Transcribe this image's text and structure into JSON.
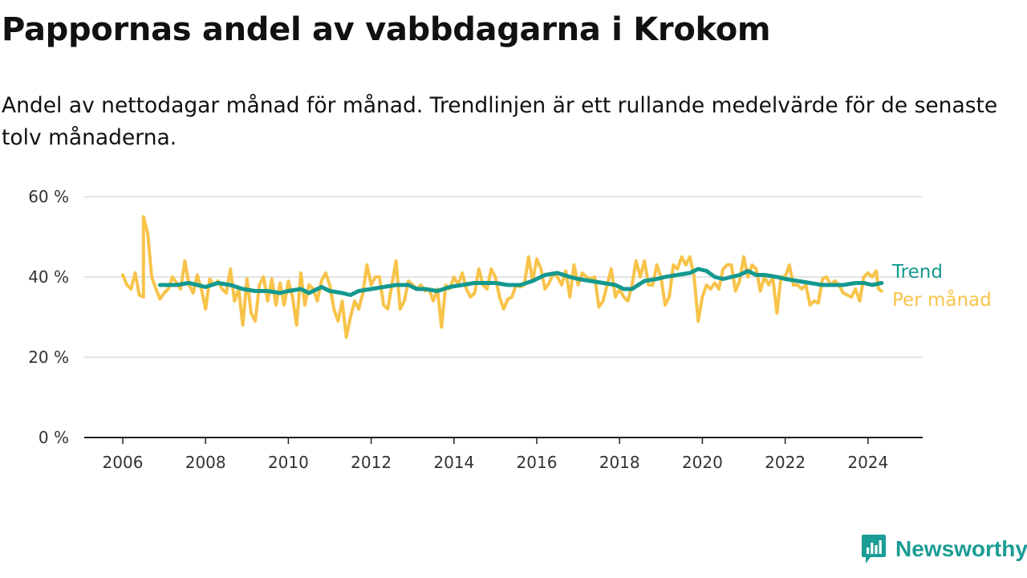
{
  "title": "Pappornas andel av vabbdagarna i Krokom",
  "subtitle": "Andel av nettodagar månad för månad. Trendlinjen är ett rullande medelvärde för de senaste tolv månaderna.",
  "brand": {
    "name": "Newsworthy",
    "icon": "newsworthy-logo-icon",
    "color": "#1b9c94"
  },
  "chart_data": {
    "type": "line",
    "title": "Pappornas andel av vabbdagarna i Krokom",
    "xlabel": "",
    "ylabel": "",
    "ylim": [
      0,
      60
    ],
    "xlim": [
      2005.1,
      2025.3
    ],
    "grid": true,
    "x_ticks": [
      2006,
      2008,
      2010,
      2012,
      2014,
      2016,
      2018,
      2020,
      2022,
      2024
    ],
    "x_tick_labels": [
      "2006",
      "2008",
      "2010",
      "2012",
      "2014",
      "2016",
      "2018",
      "2020",
      "2022",
      "2024"
    ],
    "y_ticks": [
      0,
      20,
      40,
      60
    ],
    "y_tick_labels": [
      "0 %",
      "20 %",
      "40 %",
      "60 %"
    ],
    "series": [
      {
        "name": "Per månad",
        "color": "#f8c34a",
        "points": [
          [
            2006.0,
            40.5
          ],
          [
            2006.1,
            38
          ],
          [
            2006.2,
            37
          ],
          [
            2006.3,
            41
          ],
          [
            2006.4,
            35.5
          ],
          [
            2006.5,
            35
          ],
          [
            2006.5,
            55
          ],
          [
            2006.6,
            51
          ],
          [
            2006.7,
            40
          ],
          [
            2006.8,
            37
          ],
          [
            2006.9,
            34.5
          ],
          [
            2007.0,
            36
          ],
          [
            2007.1,
            37
          ],
          [
            2007.2,
            40
          ],
          [
            2007.3,
            38.5
          ],
          [
            2007.4,
            37
          ],
          [
            2007.5,
            44
          ],
          [
            2007.6,
            38
          ],
          [
            2007.7,
            36
          ],
          [
            2007.8,
            40.5
          ],
          [
            2007.9,
            37
          ],
          [
            2008.0,
            32
          ],
          [
            2008.1,
            39.5
          ],
          [
            2008.2,
            38
          ],
          [
            2008.3,
            39
          ],
          [
            2008.4,
            37
          ],
          [
            2008.5,
            36
          ],
          [
            2008.6,
            42
          ],
          [
            2008.7,
            34
          ],
          [
            2008.8,
            37
          ],
          [
            2008.9,
            28
          ],
          [
            2009.0,
            39.5
          ],
          [
            2009.1,
            31
          ],
          [
            2009.2,
            29
          ],
          [
            2009.3,
            38
          ],
          [
            2009.4,
            40
          ],
          [
            2009.5,
            34
          ],
          [
            2009.6,
            39.5
          ],
          [
            2009.7,
            33
          ],
          [
            2009.8,
            38.5
          ],
          [
            2009.9,
            33
          ],
          [
            2010.0,
            39
          ],
          [
            2010.1,
            35
          ],
          [
            2010.2,
            28
          ],
          [
            2010.3,
            41
          ],
          [
            2010.4,
            33
          ],
          [
            2010.5,
            38
          ],
          [
            2010.6,
            37
          ],
          [
            2010.7,
            34
          ],
          [
            2010.8,
            39
          ],
          [
            2010.9,
            41
          ],
          [
            2011.0,
            38
          ],
          [
            2011.1,
            32
          ],
          [
            2011.2,
            29
          ],
          [
            2011.3,
            34
          ],
          [
            2011.4,
            25
          ],
          [
            2011.5,
            30
          ],
          [
            2011.6,
            34
          ],
          [
            2011.7,
            32
          ],
          [
            2011.8,
            36
          ],
          [
            2011.9,
            43
          ],
          [
            2012.0,
            38
          ],
          [
            2012.1,
            40
          ],
          [
            2012.2,
            40
          ],
          [
            2012.3,
            33
          ],
          [
            2012.4,
            32
          ],
          [
            2012.5,
            38
          ],
          [
            2012.6,
            44
          ],
          [
            2012.7,
            32
          ],
          [
            2012.8,
            34
          ],
          [
            2012.9,
            39
          ],
          [
            2013.0,
            38
          ],
          [
            2013.1,
            37
          ],
          [
            2013.2,
            38
          ],
          [
            2013.3,
            36.5
          ],
          [
            2013.4,
            37
          ],
          [
            2013.5,
            34
          ],
          [
            2013.6,
            37
          ],
          [
            2013.7,
            27.5
          ],
          [
            2013.8,
            38
          ],
          [
            2013.9,
            37
          ],
          [
            2014.0,
            40
          ],
          [
            2014.1,
            38
          ],
          [
            2014.2,
            41
          ],
          [
            2014.3,
            37
          ],
          [
            2014.4,
            35
          ],
          [
            2014.5,
            36
          ],
          [
            2014.6,
            42
          ],
          [
            2014.7,
            38
          ],
          [
            2014.8,
            37
          ],
          [
            2014.9,
            42
          ],
          [
            2015.0,
            40
          ],
          [
            2015.1,
            35
          ],
          [
            2015.2,
            32
          ],
          [
            2015.3,
            34.5
          ],
          [
            2015.4,
            35
          ],
          [
            2015.5,
            38
          ],
          [
            2015.6,
            37.5
          ],
          [
            2015.7,
            38
          ],
          [
            2015.8,
            45
          ],
          [
            2015.9,
            39
          ],
          [
            2016.0,
            44.5
          ],
          [
            2016.1,
            42
          ],
          [
            2016.2,
            37
          ],
          [
            2016.3,
            38.5
          ],
          [
            2016.4,
            41
          ],
          [
            2016.5,
            40
          ],
          [
            2016.6,
            38
          ],
          [
            2016.7,
            41.5
          ],
          [
            2016.8,
            35
          ],
          [
            2016.9,
            43
          ],
          [
            2017.0,
            38
          ],
          [
            2017.1,
            41
          ],
          [
            2017.2,
            40
          ],
          [
            2017.3,
            39.5
          ],
          [
            2017.4,
            40
          ],
          [
            2017.5,
            32.5
          ],
          [
            2017.6,
            34
          ],
          [
            2017.7,
            38
          ],
          [
            2017.8,
            42
          ],
          [
            2017.9,
            35
          ],
          [
            2018.0,
            37
          ],
          [
            2018.1,
            35
          ],
          [
            2018.2,
            34
          ],
          [
            2018.3,
            38
          ],
          [
            2018.4,
            44
          ],
          [
            2018.5,
            40
          ],
          [
            2018.6,
            44
          ],
          [
            2018.7,
            38
          ],
          [
            2018.8,
            38
          ],
          [
            2018.9,
            43
          ],
          [
            2019.0,
            40
          ],
          [
            2019.1,
            33
          ],
          [
            2019.2,
            35
          ],
          [
            2019.3,
            43
          ],
          [
            2019.4,
            42
          ],
          [
            2019.5,
            45
          ],
          [
            2019.6,
            43
          ],
          [
            2019.7,
            45
          ],
          [
            2019.8,
            40
          ],
          [
            2019.9,
            29
          ],
          [
            2020.0,
            35
          ],
          [
            2020.1,
            38
          ],
          [
            2020.2,
            37
          ],
          [
            2020.3,
            38.5
          ],
          [
            2020.4,
            37
          ],
          [
            2020.5,
            42
          ],
          [
            2020.6,
            43
          ],
          [
            2020.7,
            43
          ],
          [
            2020.8,
            36.5
          ],
          [
            2020.9,
            39
          ],
          [
            2021.0,
            45
          ],
          [
            2021.1,
            40
          ],
          [
            2021.2,
            43
          ],
          [
            2021.3,
            42
          ],
          [
            2021.4,
            36.5
          ],
          [
            2021.5,
            40
          ],
          [
            2021.6,
            38
          ],
          [
            2021.7,
            40
          ],
          [
            2021.8,
            31
          ],
          [
            2021.9,
            40
          ],
          [
            2022.0,
            40
          ],
          [
            2022.1,
            43
          ],
          [
            2022.2,
            38
          ],
          [
            2022.3,
            38
          ],
          [
            2022.4,
            37
          ],
          [
            2022.5,
            38
          ],
          [
            2022.6,
            33
          ],
          [
            2022.7,
            34
          ],
          [
            2022.8,
            33.5
          ],
          [
            2022.9,
            39.5
          ],
          [
            2023.0,
            40
          ],
          [
            2023.1,
            38
          ],
          [
            2023.2,
            39
          ],
          [
            2023.3,
            38
          ],
          [
            2023.4,
            36
          ],
          [
            2023.5,
            35.5
          ],
          [
            2023.6,
            35
          ],
          [
            2023.7,
            37
          ],
          [
            2023.8,
            34
          ],
          [
            2023.9,
            40
          ],
          [
            2024.0,
            41
          ],
          [
            2024.1,
            40
          ],
          [
            2024.2,
            41.5
          ],
          [
            2024.25,
            37
          ],
          [
            2024.33,
            36.5
          ]
        ]
      },
      {
        "name": "Trend",
        "color": "#14998f",
        "points": [
          [
            2006.9,
            38
          ],
          [
            2007.3,
            38
          ],
          [
            2007.6,
            38.5
          ],
          [
            2008.0,
            37.5
          ],
          [
            2008.3,
            38.5
          ],
          [
            2008.6,
            38
          ],
          [
            2008.9,
            37
          ],
          [
            2009.2,
            36.5
          ],
          [
            2009.5,
            36.5
          ],
          [
            2009.8,
            36
          ],
          [
            2010.0,
            36.5
          ],
          [
            2010.3,
            37
          ],
          [
            2010.5,
            36
          ],
          [
            2010.8,
            37.5
          ],
          [
            2011.0,
            36.5
          ],
          [
            2011.3,
            36
          ],
          [
            2011.5,
            35.5
          ],
          [
            2011.7,
            36.5
          ],
          [
            2012.0,
            37
          ],
          [
            2012.3,
            37.5
          ],
          [
            2012.6,
            38
          ],
          [
            2012.9,
            38
          ],
          [
            2013.1,
            37
          ],
          [
            2013.3,
            37
          ],
          [
            2013.6,
            36.5
          ],
          [
            2013.9,
            37.5
          ],
          [
            2014.2,
            38
          ],
          [
            2014.5,
            38.5
          ],
          [
            2014.8,
            38.5
          ],
          [
            2015.0,
            38.5
          ],
          [
            2015.3,
            38
          ],
          [
            2015.6,
            38
          ],
          [
            2015.9,
            39
          ],
          [
            2016.2,
            40.5
          ],
          [
            2016.5,
            41
          ],
          [
            2016.8,
            40
          ],
          [
            2017.0,
            39.5
          ],
          [
            2017.3,
            39
          ],
          [
            2017.6,
            38.5
          ],
          [
            2017.9,
            38
          ],
          [
            2018.1,
            37
          ],
          [
            2018.3,
            37
          ],
          [
            2018.6,
            39
          ],
          [
            2018.9,
            39.5
          ],
          [
            2019.1,
            40
          ],
          [
            2019.4,
            40.5
          ],
          [
            2019.7,
            41
          ],
          [
            2019.9,
            42
          ],
          [
            2020.1,
            41.5
          ],
          [
            2020.3,
            40
          ],
          [
            2020.5,
            39.5
          ],
          [
            2020.7,
            40
          ],
          [
            2020.9,
            40.5
          ],
          [
            2021.1,
            41.5
          ],
          [
            2021.3,
            40.5
          ],
          [
            2021.5,
            40.5
          ],
          [
            2021.8,
            40
          ],
          [
            2022.0,
            39.5
          ],
          [
            2022.3,
            39
          ],
          [
            2022.6,
            38.5
          ],
          [
            2022.9,
            38
          ],
          [
            2023.1,
            38
          ],
          [
            2023.4,
            38
          ],
          [
            2023.7,
            38.5
          ],
          [
            2023.9,
            38.5
          ],
          [
            2024.1,
            38
          ],
          [
            2024.33,
            38.5
          ]
        ]
      }
    ],
    "legend": [
      {
        "label": "Trend",
        "color": "#14998f"
      },
      {
        "label": "Per månad",
        "color": "#f8c34a"
      }
    ],
    "legend_position": "right"
  }
}
